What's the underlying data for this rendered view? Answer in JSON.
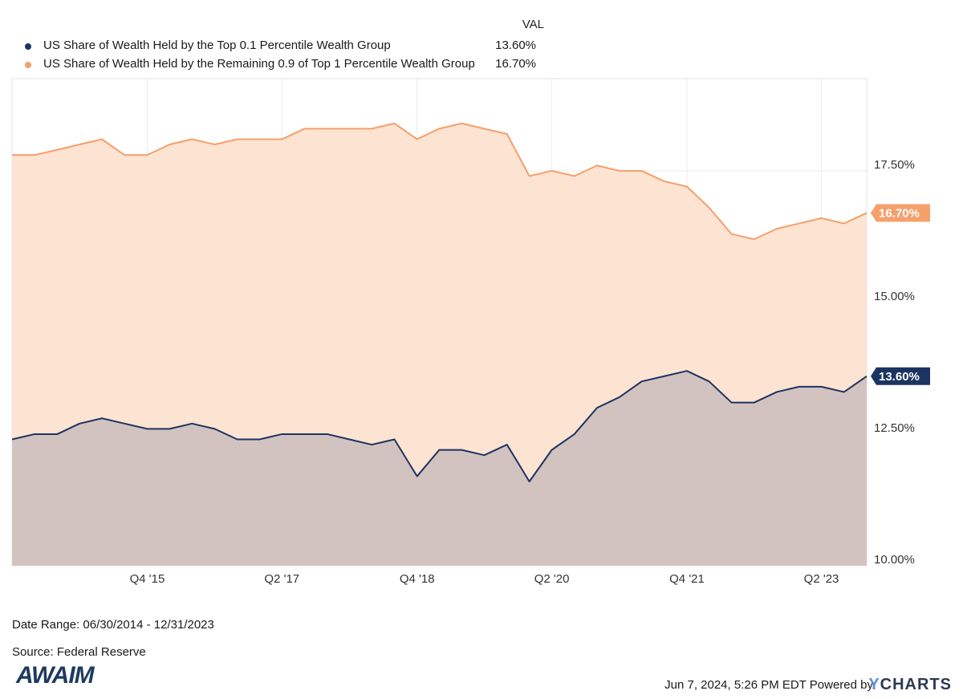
{
  "legend": {
    "header": "VAL",
    "items": [
      {
        "name": "US Share of Wealth Held by the Top 0.1 Percentile Wealth Group",
        "value": "13.60%",
        "color": "#1c3461"
      },
      {
        "name": "US Share of Wealth Held by the Remaining 0.9 of Top 1 Percentile Wealth Group",
        "value": "16.70%",
        "color": "#f5a06b"
      }
    ]
  },
  "footer": {
    "date_range": "Date Range: 06/30/2014 - 12/31/2023",
    "source": "Source: Federal Reserve",
    "logo_text": "AWAIM",
    "timestamp": "Jun 7, 2024, 5:26 PM EDT Powered by",
    "brand": "YCHARTS"
  },
  "chart_data": {
    "type": "area",
    "x": [
      "2014-06-30",
      "2014-09-30",
      "2014-12-31",
      "2015-03-31",
      "2015-06-30",
      "2015-09-30",
      "2015-12-31",
      "2016-03-31",
      "2016-06-30",
      "2016-09-30",
      "2016-12-31",
      "2017-03-31",
      "2017-06-30",
      "2017-09-30",
      "2017-12-31",
      "2018-03-31",
      "2018-06-30",
      "2018-09-30",
      "2018-12-31",
      "2019-03-31",
      "2019-06-30",
      "2019-09-30",
      "2019-12-31",
      "2020-03-31",
      "2020-06-30",
      "2020-09-30",
      "2020-12-31",
      "2021-03-31",
      "2021-06-30",
      "2021-09-30",
      "2021-12-31",
      "2022-03-31",
      "2022-06-30",
      "2022-09-30",
      "2022-12-31",
      "2023-03-31",
      "2023-06-30",
      "2023-09-30",
      "2023-12-31"
    ],
    "series": [
      {
        "name": "US Share of Wealth Held by the Top 0.1 Percentile Wealth Group",
        "color": "#1c3461",
        "fill": "#d3c3c0",
        "last_label": "13.60%",
        "values": [
          12.4,
          12.5,
          12.5,
          12.7,
          12.8,
          12.7,
          12.6,
          12.6,
          12.7,
          12.6,
          12.4,
          12.4,
          12.5,
          12.5,
          12.5,
          12.4,
          12.3,
          12.4,
          11.7,
          12.2,
          12.2,
          12.1,
          12.3,
          11.6,
          12.2,
          12.5,
          13.0,
          13.2,
          13.5,
          13.6,
          13.7,
          13.5,
          13.1,
          13.1,
          13.3,
          13.4,
          13.4,
          13.3,
          13.6
        ]
      },
      {
        "name": "US Share of Wealth Held by the Remaining 0.9 of Top 1 Percentile Wealth Group",
        "color": "#f5a06b",
        "fill": "#fde3d2",
        "last_label": "16.70%",
        "values": [
          17.8,
          17.8,
          17.9,
          18.0,
          18.1,
          17.8,
          17.8,
          18.0,
          18.1,
          18.0,
          18.1,
          18.1,
          18.1,
          18.3,
          18.3,
          18.3,
          18.3,
          18.4,
          18.1,
          18.3,
          18.4,
          18.3,
          18.2,
          17.4,
          17.5,
          17.4,
          17.6,
          17.5,
          17.5,
          17.3,
          17.2,
          16.8,
          16.3,
          16.2,
          16.4,
          16.5,
          16.6,
          16.5,
          16.7
        ]
      }
    ],
    "ylim": [
      10.0,
      19.25
    ],
    "yticks": [
      "10.00%",
      "12.50%",
      "15.00%",
      "17.50%"
    ],
    "ytick_values": [
      10.0,
      12.5,
      15.0,
      17.5
    ],
    "xticks": [
      {
        "label": "Q4 '15",
        "date": "2015-12-31"
      },
      {
        "label": "Q2 '17",
        "date": "2017-06-30"
      },
      {
        "label": "Q4 '18",
        "date": "2018-12-31"
      },
      {
        "label": "Q2 '20",
        "date": "2020-06-30"
      },
      {
        "label": "Q4 '21",
        "date": "2021-12-31"
      },
      {
        "label": "Q2 '23",
        "date": "2023-06-30"
      }
    ],
    "grid": true,
    "legend_position": "top-left"
  }
}
